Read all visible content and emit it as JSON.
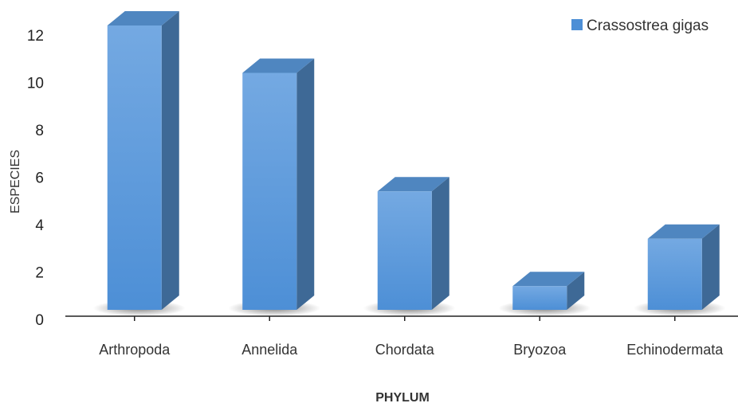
{
  "chart_data": {
    "type": "bar",
    "style": "3d-column",
    "categories": [
      "Arthropoda",
      "Annelida",
      "Chordata",
      "Bryozoa",
      "Echinodermata"
    ],
    "series": [
      {
        "name": "Crassostrea gigas",
        "values": [
          12,
          10,
          5,
          1,
          3
        ]
      }
    ],
    "xlabel": "PHYLUM",
    "ylabel": "ESPECIES",
    "ylim": [
      0,
      12
    ],
    "yticks": [
      0,
      2,
      4,
      6,
      8,
      10,
      12
    ],
    "grid": false,
    "legend_position": "top-right",
    "colors": {
      "front_top": "#74a9e2",
      "front_bottom": "#4d8fd6",
      "top_face": "#4f86c0",
      "side_face": "#3e6996",
      "shadow": "#6a6a6a"
    }
  }
}
